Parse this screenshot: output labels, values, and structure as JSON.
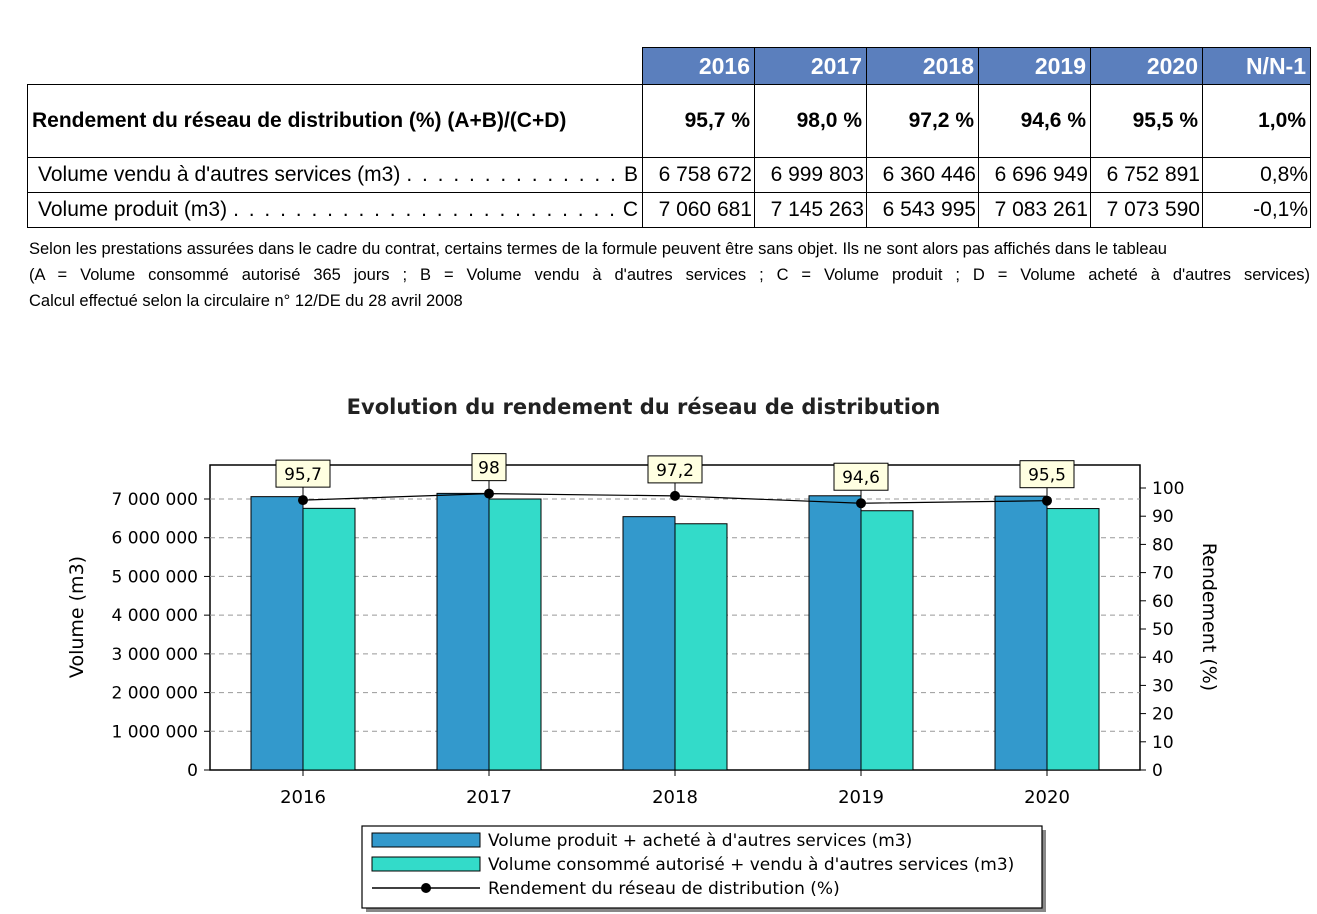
{
  "table": {
    "years": [
      "2016",
      "2017",
      "2018",
      "2019",
      "2020"
    ],
    "delta_header": "N/N-1",
    "rows": [
      {
        "label": "Rendement du réseau de distribution (%) (A+B)/(C+D)",
        "code": "",
        "values": [
          "95,7 %",
          "98,0 %",
          "97,2 %",
          "94,6 %",
          "95,5 %"
        ],
        "delta": "1,0%"
      },
      {
        "label": "Volume vendu à d'autres services (m3)",
        "code": "B",
        "values": [
          "6 758 672",
          "6 999 803",
          "6 360 446",
          "6 696 949",
          "6 752 891"
        ],
        "delta": "0,8%"
      },
      {
        "label": "Volume produit (m3)",
        "code": "C",
        "values": [
          "7 060 681",
          "7 145 263",
          "6 543 995",
          "7 083 261",
          "7 073 590"
        ],
        "delta": "-0,1%"
      }
    ]
  },
  "notes": {
    "line1": "Selon les prestations assurées dans le cadre du contrat, certains termes de la formule peuvent être sans objet. Ils ne sont alors pas affichés dans le tableau",
    "line2": "(A = Volume consommé autorisé 365 jours ; B = Volume vendu à d'autres services ; C = Volume produit ; D = Volume acheté à d'autres services)",
    "line3": "Calcul effectué selon la circulaire n° 12/DE du 28 avril 2008"
  },
  "chart_data": {
    "type": "bar",
    "title": "Evolution du rendement du réseau de distribution",
    "categories": [
      "2016",
      "2017",
      "2018",
      "2019",
      "2020"
    ],
    "ylabel": "Volume (m3)",
    "ylabel_right": "Rendement (%)",
    "ylim": [
      0,
      7000000
    ],
    "ylim_right": [
      0,
      100
    ],
    "yticks": [
      "0",
      "1 000 000",
      "2 000 000",
      "3 000 000",
      "4 000 000",
      "5 000 000",
      "6 000 000",
      "7 000 000"
    ],
    "yticks_right": [
      "0",
      "10",
      "20",
      "30",
      "40",
      "50",
      "60",
      "70",
      "80",
      "90",
      "100"
    ],
    "grid": true,
    "legend_position": "bottom",
    "series": [
      {
        "name": "Volume produit + acheté à d'autres services (m3)",
        "kind": "bar",
        "color": "#3399cc",
        "values": [
          7060681,
          7145263,
          6543995,
          7083261,
          7073590
        ]
      },
      {
        "name": "Volume consommé autorisé + vendu à d'autres services (m3)",
        "kind": "bar",
        "color": "#33dbc9",
        "values": [
          6758672,
          6999803,
          6360446,
          6696949,
          6752891
        ]
      },
      {
        "name": "Rendement du réseau de distribution (%)",
        "kind": "line",
        "axis": "right",
        "color": "#000000",
        "values": [
          95.7,
          98,
          97.2,
          94.6,
          95.5
        ],
        "labels": [
          "95,7",
          "98",
          "97,2",
          "94,6",
          "95,5"
        ]
      }
    ]
  }
}
